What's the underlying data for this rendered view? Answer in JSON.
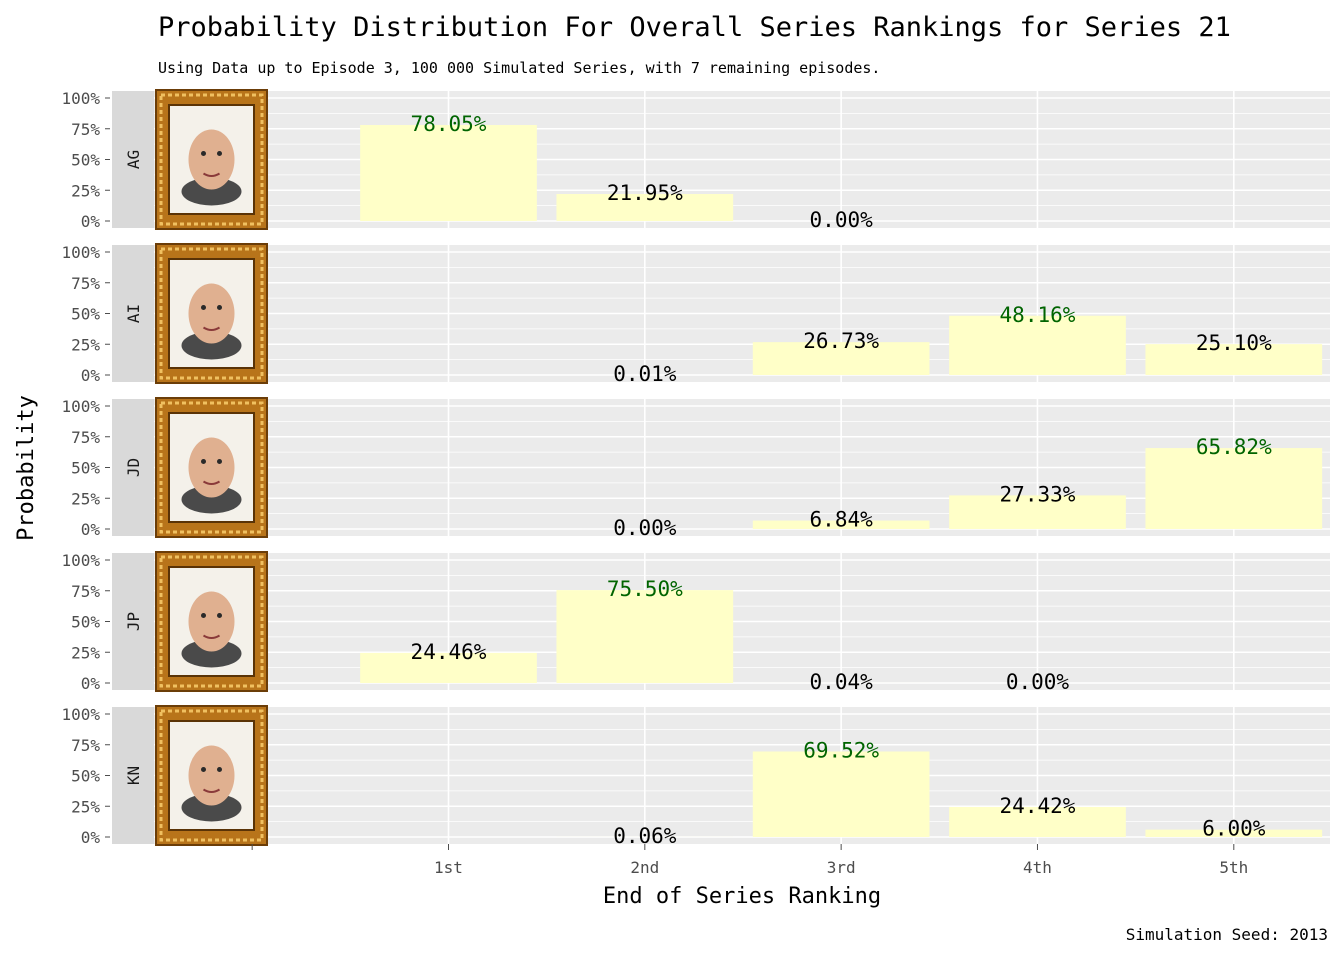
{
  "title": "Probability Distribution For Overall Series Rankings for Series 21",
  "subtitle": "Using Data up to Episode 3, 100 000 Simulated Series, with 7 remaining episodes.",
  "caption": "Simulation Seed: 2013",
  "colors": {
    "panel_bg": "#ebebeb",
    "grid": "#ffffff",
    "bar": "#ffffc8",
    "strip_bg": "#d9d9d9",
    "frame_gold": "#b8741a",
    "label_default": "#000000",
    "label_max": "#006400"
  },
  "chart_data": {
    "type": "bar",
    "faceted_by": "contestant",
    "categories": [
      "1st",
      "2nd",
      "3rd",
      "4th",
      "5th"
    ],
    "xlabel": "End of Series Ranking",
    "ylabel": "Probability",
    "ylim": [
      0,
      1
    ],
    "yticks": [
      "0%",
      "25%",
      "50%",
      "75%",
      "100%"
    ],
    "grid": true,
    "legend": "none",
    "series": [
      {
        "name": "AG",
        "values": [
          0.7805,
          0.2195,
          0.0,
          null,
          null
        ],
        "labels": [
          "78.05%",
          "21.95%",
          "0.00%",
          "",
          ""
        ],
        "max_index": 0
      },
      {
        "name": "AI",
        "values": [
          null,
          0.0001,
          0.2673,
          0.4816,
          0.251
        ],
        "labels": [
          "",
          "0.01%",
          "26.73%",
          "48.16%",
          "25.10%"
        ],
        "max_index": 3
      },
      {
        "name": "JD",
        "values": [
          null,
          0.0,
          0.0684,
          0.2733,
          0.6582
        ],
        "labels": [
          "",
          "0.00%",
          "6.84%",
          "27.33%",
          "65.82%"
        ],
        "max_index": 4
      },
      {
        "name": "JP",
        "values": [
          0.2446,
          0.755,
          0.0004,
          0.0,
          null
        ],
        "labels": [
          "24.46%",
          "75.50%",
          "0.04%",
          "0.00%",
          ""
        ],
        "max_index": 1
      },
      {
        "name": "KN",
        "values": [
          null,
          0.0006,
          0.6952,
          0.2442,
          0.06
        ],
        "labels": [
          "",
          "0.06%",
          "69.52%",
          "24.42%",
          "6.00%"
        ],
        "max_index": 2
      }
    ]
  }
}
